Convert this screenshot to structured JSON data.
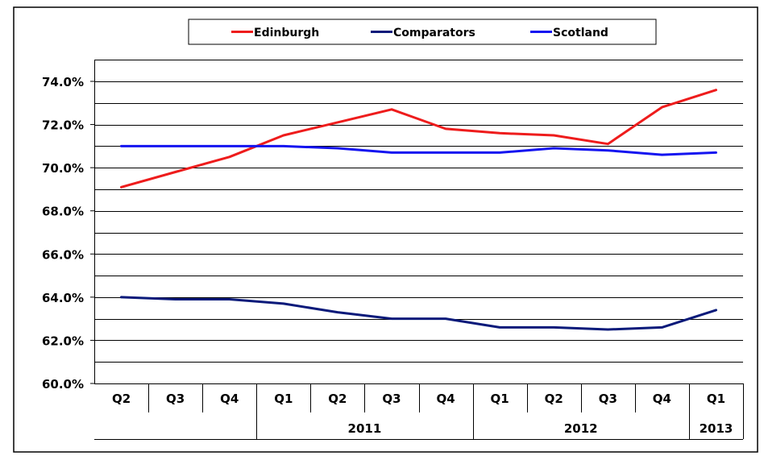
{
  "chart_data": {
    "type": "line",
    "title": "",
    "xlabel": "",
    "ylabel": "",
    "ylim": [
      60,
      74
    ],
    "y_ticks": [
      60,
      62,
      64,
      66,
      68,
      70,
      72,
      74
    ],
    "y_tick_labels": [
      "60.0%",
      "62.0%",
      "64.0%",
      "66.0%",
      "68.0%",
      "70.0%",
      "72.0%",
      "74.0%"
    ],
    "categories": [
      "Q2",
      "Q3",
      "Q4",
      "Q1",
      "Q2",
      "Q3",
      "Q4",
      "Q1",
      "Q2",
      "Q3",
      "Q4",
      "Q1"
    ],
    "year_groups": [
      {
        "label": "",
        "start": 0,
        "count": 3
      },
      {
        "label": "2011",
        "start": 3,
        "count": 4
      },
      {
        "label": "2012",
        "start": 7,
        "count": 4
      },
      {
        "label": "2013",
        "start": 11,
        "count": 1
      }
    ],
    "grid": true,
    "legend_position": "top",
    "series": [
      {
        "name": "Edinburgh",
        "color": "#ee1c1c",
        "values": [
          69.1,
          69.8,
          70.5,
          71.5,
          72.1,
          72.7,
          71.8,
          71.6,
          71.5,
          71.1,
          72.8,
          73.6
        ]
      },
      {
        "name": "Comparators",
        "color": "#0a1a7a",
        "values": [
          64.0,
          63.9,
          63.9,
          63.7,
          63.3,
          63.0,
          63.0,
          62.6,
          62.6,
          62.5,
          62.6,
          63.4
        ]
      },
      {
        "name": "Scotland",
        "color": "#1414f0",
        "values": [
          71.0,
          71.0,
          71.0,
          71.0,
          70.9,
          70.7,
          70.7,
          70.7,
          70.9,
          70.8,
          70.6,
          70.7
        ]
      }
    ]
  }
}
